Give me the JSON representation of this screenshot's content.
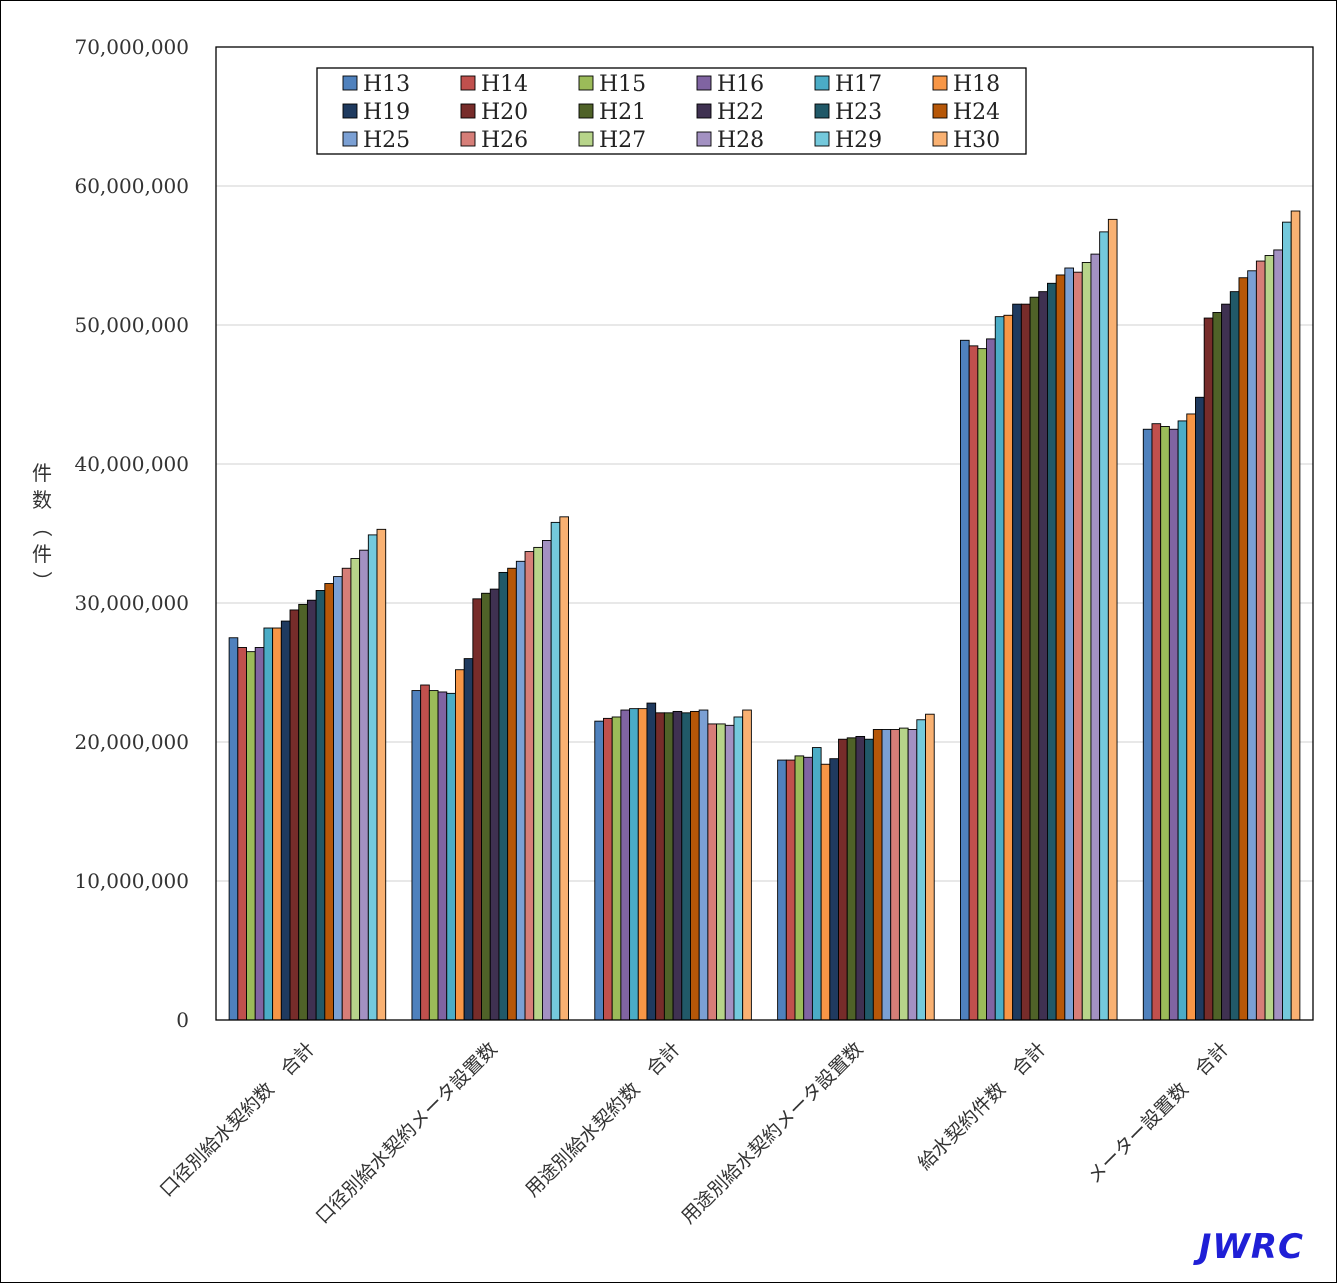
{
  "chart_data": {
    "type": "bar",
    "ylabel": "件数（件）",
    "ylim": [
      0,
      70000000
    ],
    "yticks": [
      0,
      10000000,
      20000000,
      30000000,
      40000000,
      50000000,
      60000000,
      70000000
    ],
    "ytick_labels": [
      "0",
      "10,000,000",
      "20,000,000",
      "30,000,000",
      "40,000,000",
      "50,000,000",
      "60,000,000",
      "70,000,000"
    ],
    "grid": true,
    "legend_position": "top",
    "categories": [
      "口径別給水契約数　合計",
      "口径別給水契約メータ設置数",
      "用途別給水契約数　合計",
      "用途別給水契約メータ設置数",
      "給水契約件数　合計",
      "メーター設置数　合計"
    ],
    "series": [
      {
        "name": "H13",
        "color": "#4f81bd",
        "values": [
          27500000,
          23700000,
          21500000,
          18700000,
          48900000,
          42500000
        ]
      },
      {
        "name": "H14",
        "color": "#c0504d",
        "values": [
          26800000,
          24100000,
          21700000,
          18700000,
          48500000,
          42900000
        ]
      },
      {
        "name": "H15",
        "color": "#9bbb59",
        "values": [
          26500000,
          23700000,
          21800000,
          19000000,
          48300000,
          42700000
        ]
      },
      {
        "name": "H16",
        "color": "#8064a2",
        "values": [
          26800000,
          23600000,
          22300000,
          18900000,
          49000000,
          42500000
        ]
      },
      {
        "name": "H17",
        "color": "#4bacc6",
        "values": [
          28200000,
          23500000,
          22400000,
          19600000,
          50600000,
          43100000
        ]
      },
      {
        "name": "H18",
        "color": "#f79646",
        "values": [
          28200000,
          25200000,
          22400000,
          18400000,
          50700000,
          43600000
        ]
      },
      {
        "name": "H19",
        "color": "#1f3a5f",
        "values": [
          28700000,
          26000000,
          22800000,
          18800000,
          51500000,
          44800000
        ]
      },
      {
        "name": "H20",
        "color": "#772c2a",
        "values": [
          29500000,
          30300000,
          22100000,
          20200000,
          51500000,
          50500000
        ]
      },
      {
        "name": "H21",
        "color": "#4f6228",
        "values": [
          29900000,
          30700000,
          22100000,
          20300000,
          52000000,
          50900000
        ]
      },
      {
        "name": "H22",
        "color": "#3f3151",
        "values": [
          30200000,
          31000000,
          22200000,
          20400000,
          52400000,
          51500000
        ]
      },
      {
        "name": "H23",
        "color": "#215968",
        "values": [
          30900000,
          32200000,
          22100000,
          20200000,
          53000000,
          52400000
        ]
      },
      {
        "name": "H24",
        "color": "#b65708",
        "values": [
          31400000,
          32500000,
          22200000,
          20900000,
          53600000,
          53400000
        ]
      },
      {
        "name": "H25",
        "color": "#7ba0d4",
        "values": [
          31900000,
          33000000,
          22300000,
          20900000,
          54100000,
          53900000
        ]
      },
      {
        "name": "H26",
        "color": "#d67e78",
        "values": [
          32500000,
          33700000,
          21300000,
          20900000,
          53800000,
          54600000
        ]
      },
      {
        "name": "H27",
        "color": "#b7d48a",
        "values": [
          33200000,
          34000000,
          21300000,
          21000000,
          54500000,
          55000000
        ]
      },
      {
        "name": "H28",
        "color": "#a391c2",
        "values": [
          33800000,
          34500000,
          21200000,
          20900000,
          55100000,
          55400000
        ]
      },
      {
        "name": "H29",
        "color": "#74c9dc",
        "values": [
          34900000,
          35800000,
          21800000,
          21600000,
          56700000,
          57400000
        ]
      },
      {
        "name": "H30",
        "color": "#f9b172",
        "values": [
          35300000,
          36200000,
          22300000,
          22000000,
          57600000,
          58200000
        ]
      }
    ]
  },
  "watermark": "JWRC"
}
